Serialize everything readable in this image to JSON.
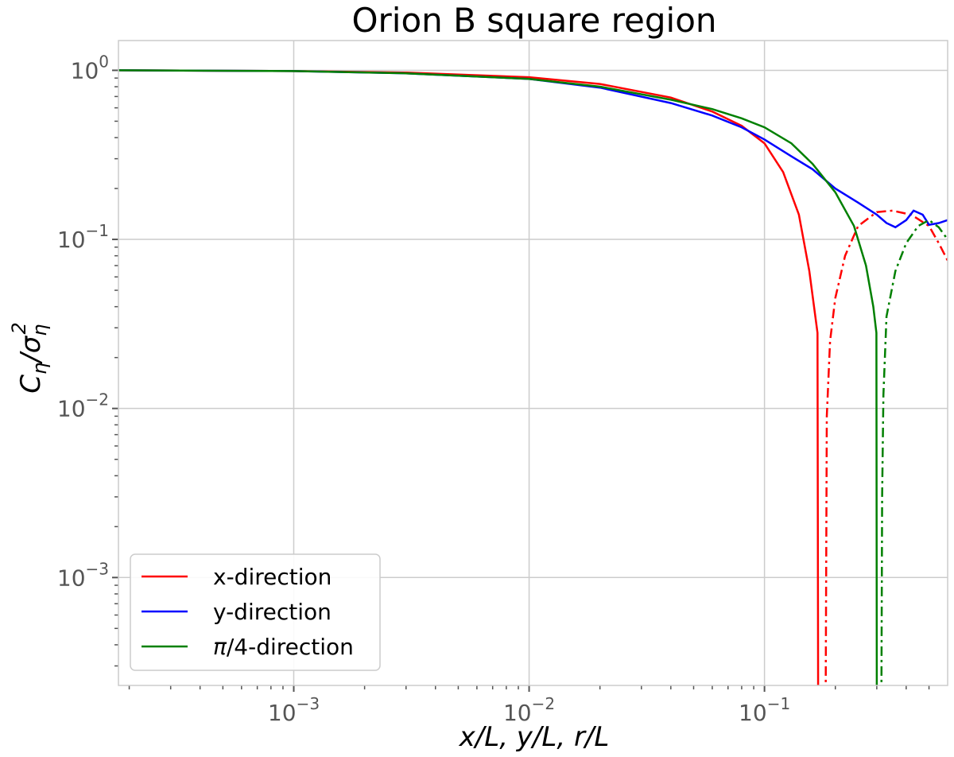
{
  "chart_data": {
    "type": "line",
    "title": "Orion B square region",
    "xlabel": "x/L, y/L, r/L",
    "ylabel": "Cη/ση²",
    "x_scale": "log",
    "y_scale": "log",
    "xlim": [
      0.00018,
      0.6
    ],
    "ylim": [
      0.00023,
      1.5
    ],
    "x_ticks": [
      {
        "value": 0.001,
        "base": "10",
        "exp": "−3"
      },
      {
        "value": 0.01,
        "base": "10",
        "exp": "−2"
      },
      {
        "value": 0.1,
        "base": "10",
        "exp": "−1"
      }
    ],
    "y_ticks": [
      {
        "value": 1,
        "base": "10",
        "exp": "0"
      },
      {
        "value": 0.1,
        "base": "10",
        "exp": "−1"
      },
      {
        "value": 0.01,
        "base": "10",
        "exp": "−2"
      },
      {
        "value": 0.001,
        "base": "10",
        "exp": "−3"
      }
    ],
    "grid": true,
    "legend_position": "lower-left",
    "series": [
      {
        "name": "x-direction",
        "color": "#ff0000",
        "solid": [
          [
            0.00018,
            1.0
          ],
          [
            0.001,
            0.99
          ],
          [
            0.003,
            0.97
          ],
          [
            0.01,
            0.91
          ],
          [
            0.02,
            0.83
          ],
          [
            0.04,
            0.69
          ],
          [
            0.06,
            0.57
          ],
          [
            0.08,
            0.47
          ],
          [
            0.1,
            0.37
          ],
          [
            0.12,
            0.25
          ],
          [
            0.14,
            0.14
          ],
          [
            0.155,
            0.065
          ],
          [
            0.168,
            0.028
          ],
          [
            0.169,
            0.0002
          ]
        ],
        "dashdot": [
          [
            0.182,
            0.0002
          ],
          [
            0.184,
            0.009
          ],
          [
            0.19,
            0.025
          ],
          [
            0.2,
            0.045
          ],
          [
            0.22,
            0.08
          ],
          [
            0.25,
            0.12
          ],
          [
            0.3,
            0.145
          ],
          [
            0.35,
            0.148
          ],
          [
            0.42,
            0.14
          ],
          [
            0.5,
            0.12
          ],
          [
            0.55,
            0.095
          ],
          [
            0.6,
            0.075
          ]
        ]
      },
      {
        "name": "y-direction",
        "color": "#0000ff",
        "solid": [
          [
            0.00018,
            1.0
          ],
          [
            0.001,
            0.99
          ],
          [
            0.003,
            0.96
          ],
          [
            0.01,
            0.89
          ],
          [
            0.02,
            0.79
          ],
          [
            0.04,
            0.64
          ],
          [
            0.06,
            0.54
          ],
          [
            0.08,
            0.46
          ],
          [
            0.1,
            0.39
          ],
          [
            0.13,
            0.31
          ],
          [
            0.16,
            0.26
          ],
          [
            0.2,
            0.2
          ],
          [
            0.25,
            0.165
          ],
          [
            0.3,
            0.14
          ],
          [
            0.33,
            0.125
          ],
          [
            0.36,
            0.118
          ],
          [
            0.4,
            0.13
          ],
          [
            0.43,
            0.148
          ],
          [
            0.47,
            0.14
          ],
          [
            0.5,
            0.122
          ],
          [
            0.55,
            0.125
          ],
          [
            0.6,
            0.13
          ]
        ]
      },
      {
        "name": "π/4-direction",
        "color": "#008000",
        "solid": [
          [
            0.00018,
            1.0
          ],
          [
            0.001,
            0.99
          ],
          [
            0.003,
            0.96
          ],
          [
            0.01,
            0.89
          ],
          [
            0.02,
            0.8
          ],
          [
            0.04,
            0.67
          ],
          [
            0.06,
            0.59
          ],
          [
            0.08,
            0.52
          ],
          [
            0.1,
            0.46
          ],
          [
            0.13,
            0.37
          ],
          [
            0.16,
            0.28
          ],
          [
            0.2,
            0.19
          ],
          [
            0.24,
            0.12
          ],
          [
            0.27,
            0.07
          ],
          [
            0.29,
            0.04
          ],
          [
            0.299,
            0.028
          ],
          [
            0.3,
            0.0002
          ]
        ],
        "dashdot": [
          [
            0.314,
            0.0002
          ],
          [
            0.316,
            0.003
          ],
          [
            0.32,
            0.012
          ],
          [
            0.33,
            0.035
          ],
          [
            0.36,
            0.065
          ],
          [
            0.4,
            0.095
          ],
          [
            0.45,
            0.12
          ],
          [
            0.5,
            0.13
          ],
          [
            0.55,
            0.118
          ],
          [
            0.6,
            0.1
          ]
        ]
      }
    ]
  }
}
